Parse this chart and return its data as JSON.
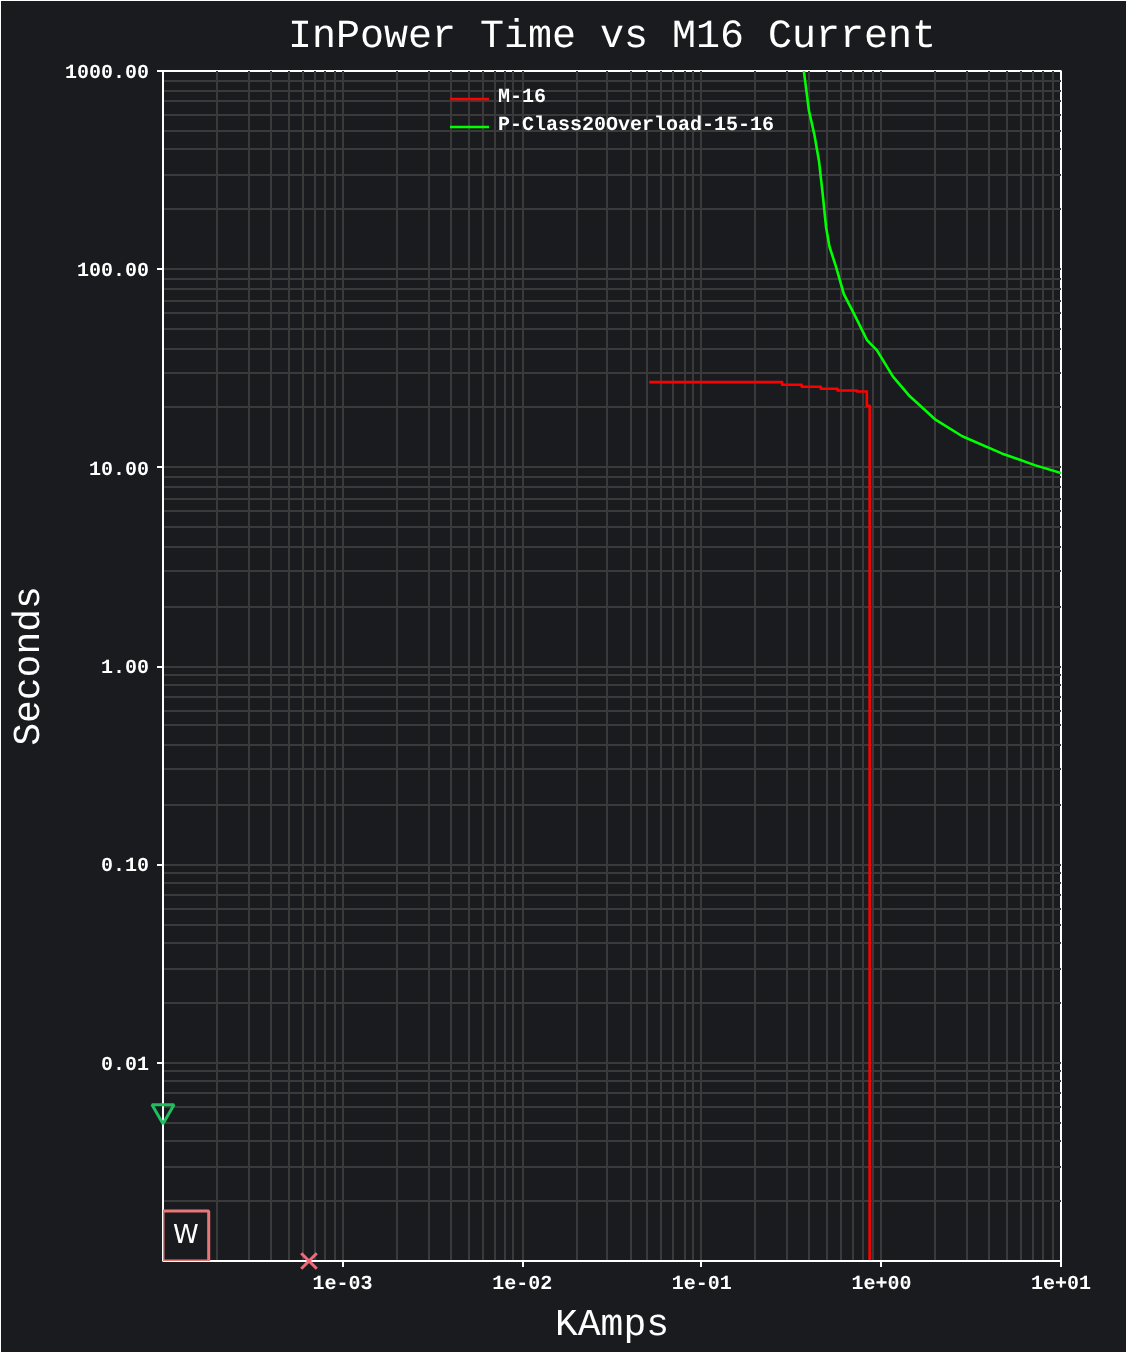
{
  "chart_data": {
    "type": "line",
    "title": "InPower Time vs M16 Current",
    "xlabel": "KAmps",
    "ylabel": "Seconds",
    "log": "xy",
    "xlim": [
      0.0001,
      10
    ],
    "ylim": [
      0.001,
      1000
    ],
    "xticks": [
      {
        "value": 0.001,
        "label": "1e-03"
      },
      {
        "value": 0.01,
        "label": "1e-02"
      },
      {
        "value": 0.1,
        "label": "1e-01"
      },
      {
        "value": 1,
        "label": "1e+00"
      },
      {
        "value": 10,
        "label": "1e+01"
      }
    ],
    "yticks": [
      {
        "value": 0.01,
        "label": "0.01"
      },
      {
        "value": 0.1,
        "label": "0.10"
      },
      {
        "value": 1,
        "label": "1.00"
      },
      {
        "value": 10,
        "label": "10.00"
      },
      {
        "value": 100,
        "label": "100.00"
      },
      {
        "value": 1000,
        "label": "1000.00"
      }
    ],
    "grid": true,
    "legend": "top",
    "annotations": [
      "W"
    ],
    "series": [
      {
        "name": "M-16",
        "color": "#ff0000",
        "x": [
          0.051,
          0.28,
          0.28,
          0.36,
          0.36,
          0.46,
          0.46,
          0.57,
          0.57,
          0.73,
          0.73,
          0.83,
          0.83,
          0.86,
          0.86
        ],
        "values": [
          27,
          27,
          26.2,
          26.2,
          25.6,
          25.6,
          25,
          25,
          24.5,
          24.5,
          24.2,
          24.2,
          20.5,
          20.5,
          0.001
        ]
      },
      {
        "name": "P-Class20Overload-15-16",
        "color": "#00ff00",
        "x": [
          0.37,
          0.395,
          0.423,
          0.449,
          0.471,
          0.492,
          0.514,
          0.559,
          0.618,
          0.702,
          0.831,
          0.945,
          1.16,
          1.44,
          2.01,
          2.82,
          4.68,
          7.14,
          10
        ],
        "values": [
          1000,
          630,
          480,
          353,
          240,
          163,
          130,
          103,
          75,
          60,
          44,
          39,
          28.8,
          22.9,
          17.4,
          14.4,
          11.8,
          10.3,
          9.4
        ]
      },
      {
        "type": "scatter",
        "color": "#f06a7a",
        "marker": "cross",
        "x": [
          0.00065
        ],
        "values": [
          0.001
        ]
      },
      {
        "type": "scatter",
        "color": "#1fbf5f",
        "marker": "triangle",
        "x": [
          0.0001
        ],
        "values": [
          0.0057
        ]
      }
    ]
  }
}
